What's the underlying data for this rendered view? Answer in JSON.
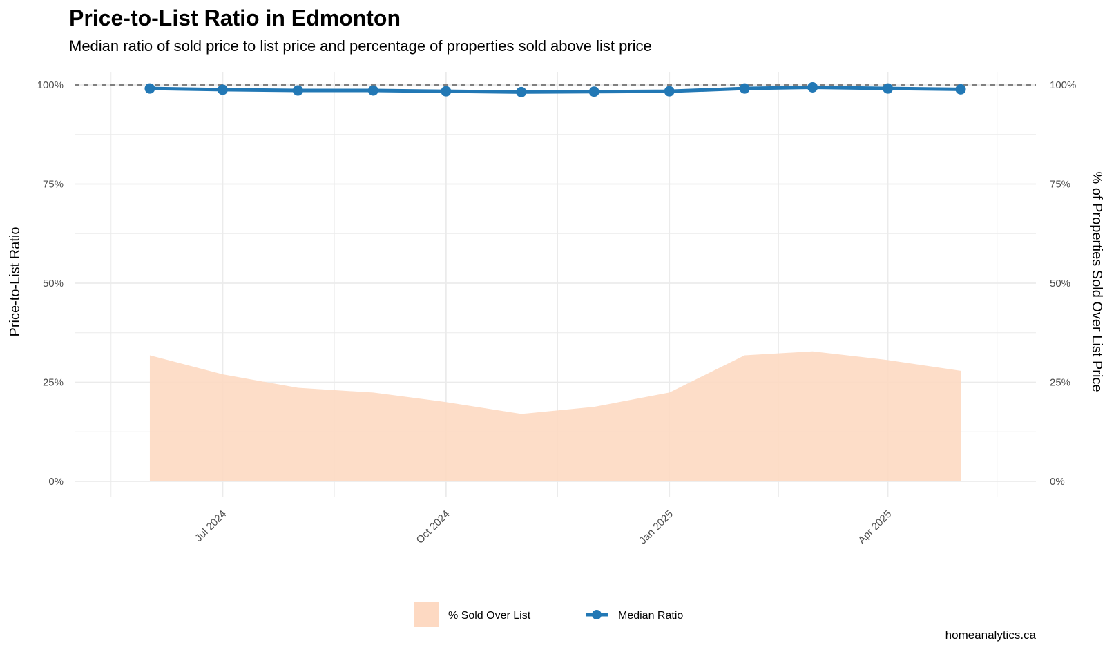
{
  "title": "Price-to-List Ratio in Edmonton",
  "subtitle": "Median ratio of sold price to list price and percentage of properties sold above list price",
  "caption": "homeanalytics.ca",
  "chart_data": {
    "type": "line",
    "x": [
      "2024-06-01",
      "2024-07-01",
      "2024-08-01",
      "2024-09-01",
      "2024-10-01",
      "2024-11-01",
      "2024-12-01",
      "2025-01-01",
      "2025-02-01",
      "2025-03-01",
      "2025-04-01",
      "2025-05-01"
    ],
    "series": [
      {
        "name": "% Sold Over List",
        "type": "area",
        "color": "#fdd9c2",
        "values": [
          31.8,
          27.0,
          23.6,
          22.4,
          20.0,
          17.0,
          18.8,
          22.4,
          31.8,
          32.8,
          30.6,
          27.9
        ]
      },
      {
        "name": "Median Ratio",
        "type": "line",
        "color": "#2278b5",
        "values": [
          99.1,
          98.8,
          98.6,
          98.6,
          98.4,
          98.2,
          98.3,
          98.4,
          99.1,
          99.4,
          99.1,
          98.9
        ]
      }
    ],
    "reference_line": 100,
    "ylabel": "Price-to-List Ratio",
    "y2label": "% of Properties Sold Over List Price",
    "ylim": [
      0,
      100
    ],
    "yticks": [
      "0%",
      "25%",
      "50%",
      "75%",
      "100%"
    ],
    "xticks": [
      "Jul 2024",
      "Oct 2024",
      "Jan 2025",
      "Apr 2025"
    ],
    "xtick_dates": [
      "2024-07-01",
      "2024-10-01",
      "2025-01-01",
      "2025-04-01"
    ],
    "legend": [
      "% Sold Over List",
      "Median Ratio"
    ],
    "legend_position": "bottom",
    "grid": true
  }
}
